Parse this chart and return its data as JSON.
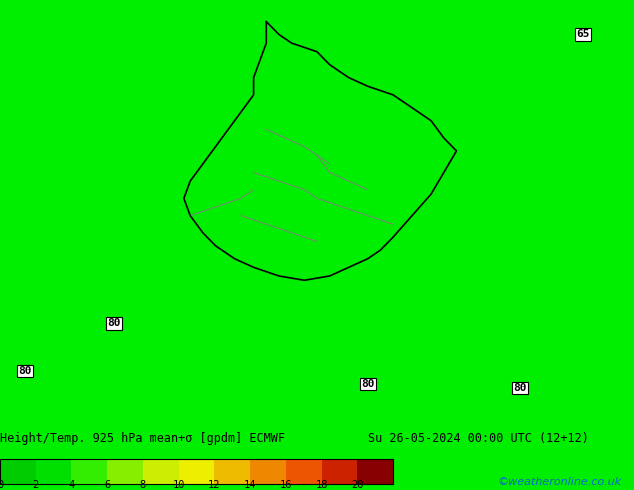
{
  "title": "Height/Temp. 925 hPa mean+σ [gpdm] ECMWF",
  "date_str": "Su 26-05-2024 00:00 UTC (12+12)",
  "watermark": "©weatheronline.co.uk",
  "colorbar_values": [
    0,
    2,
    4,
    6,
    8,
    10,
    12,
    14,
    16,
    18,
    20
  ],
  "colorbar_colors": [
    "#00cc00",
    "#00e000",
    "#33ee00",
    "#88ee00",
    "#ccee00",
    "#eeee00",
    "#eebb00",
    "#ee8800",
    "#ee5500",
    "#cc2200",
    "#880000"
  ],
  "background_color": "#00ee00",
  "text_color": "#000000",
  "label_color_title": "#000000",
  "label_color_watermark": "#0066cc",
  "contour_labels": [
    "65",
    "80",
    "80",
    "80",
    "80"
  ],
  "figsize": [
    6.34,
    4.9
  ],
  "dpi": 100
}
